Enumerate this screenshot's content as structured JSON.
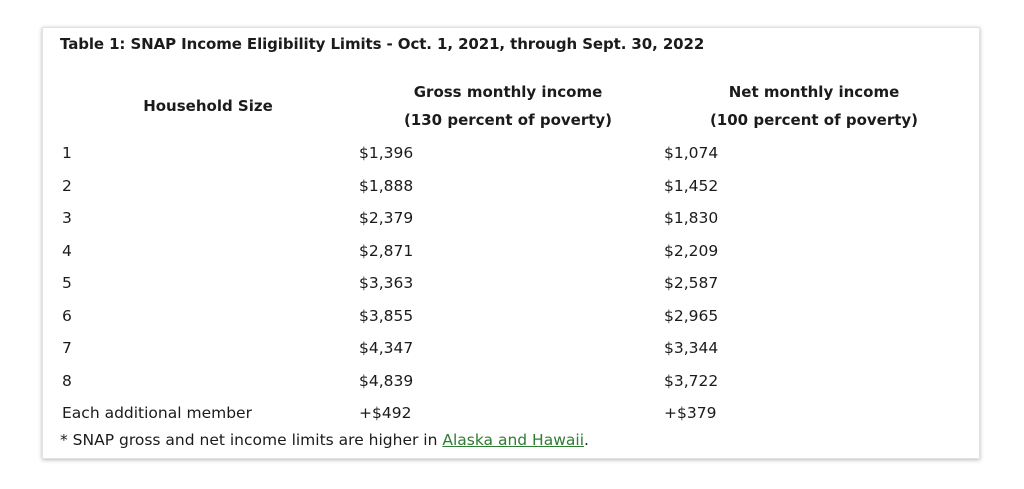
{
  "table": {
    "title": "Table 1: SNAP Income Eligibility Limits - Oct. 1, 2021, through Sept. 30, 2022",
    "headers": {
      "household_size": "Household Size",
      "gross_line1": "Gross monthly income",
      "gross_line2": "(130 percent of poverty)",
      "net_line1": "Net monthly income",
      "net_line2": "(100 percent of poverty)"
    },
    "rows": [
      {
        "size": "1",
        "gross": "$1,396",
        "net": "$1,074"
      },
      {
        "size": "2",
        "gross": "$1,888",
        "net": "$1,452"
      },
      {
        "size": "3",
        "gross": "$2,379",
        "net": "$1,830"
      },
      {
        "size": "4",
        "gross": "$2,871",
        "net": "$2,209"
      },
      {
        "size": "5",
        "gross": "$3,363",
        "net": "$2,587"
      },
      {
        "size": "6",
        "gross": "$3,855",
        "net": "$2,965"
      },
      {
        "size": "7",
        "gross": "$4,347",
        "net": "$3,344"
      },
      {
        "size": "8",
        "gross": "$4,839",
        "net": "$3,722"
      },
      {
        "size": "Each additional member",
        "gross": "+$492",
        "net": "+$379"
      }
    ]
  },
  "footnote": {
    "text_before": "* SNAP gross and net income limits are higher in ",
    "link_text": "Alaska and Hawaii",
    "text_after": "."
  },
  "colors": {
    "link": "#2e7d32",
    "text": "#1b1b1b"
  }
}
